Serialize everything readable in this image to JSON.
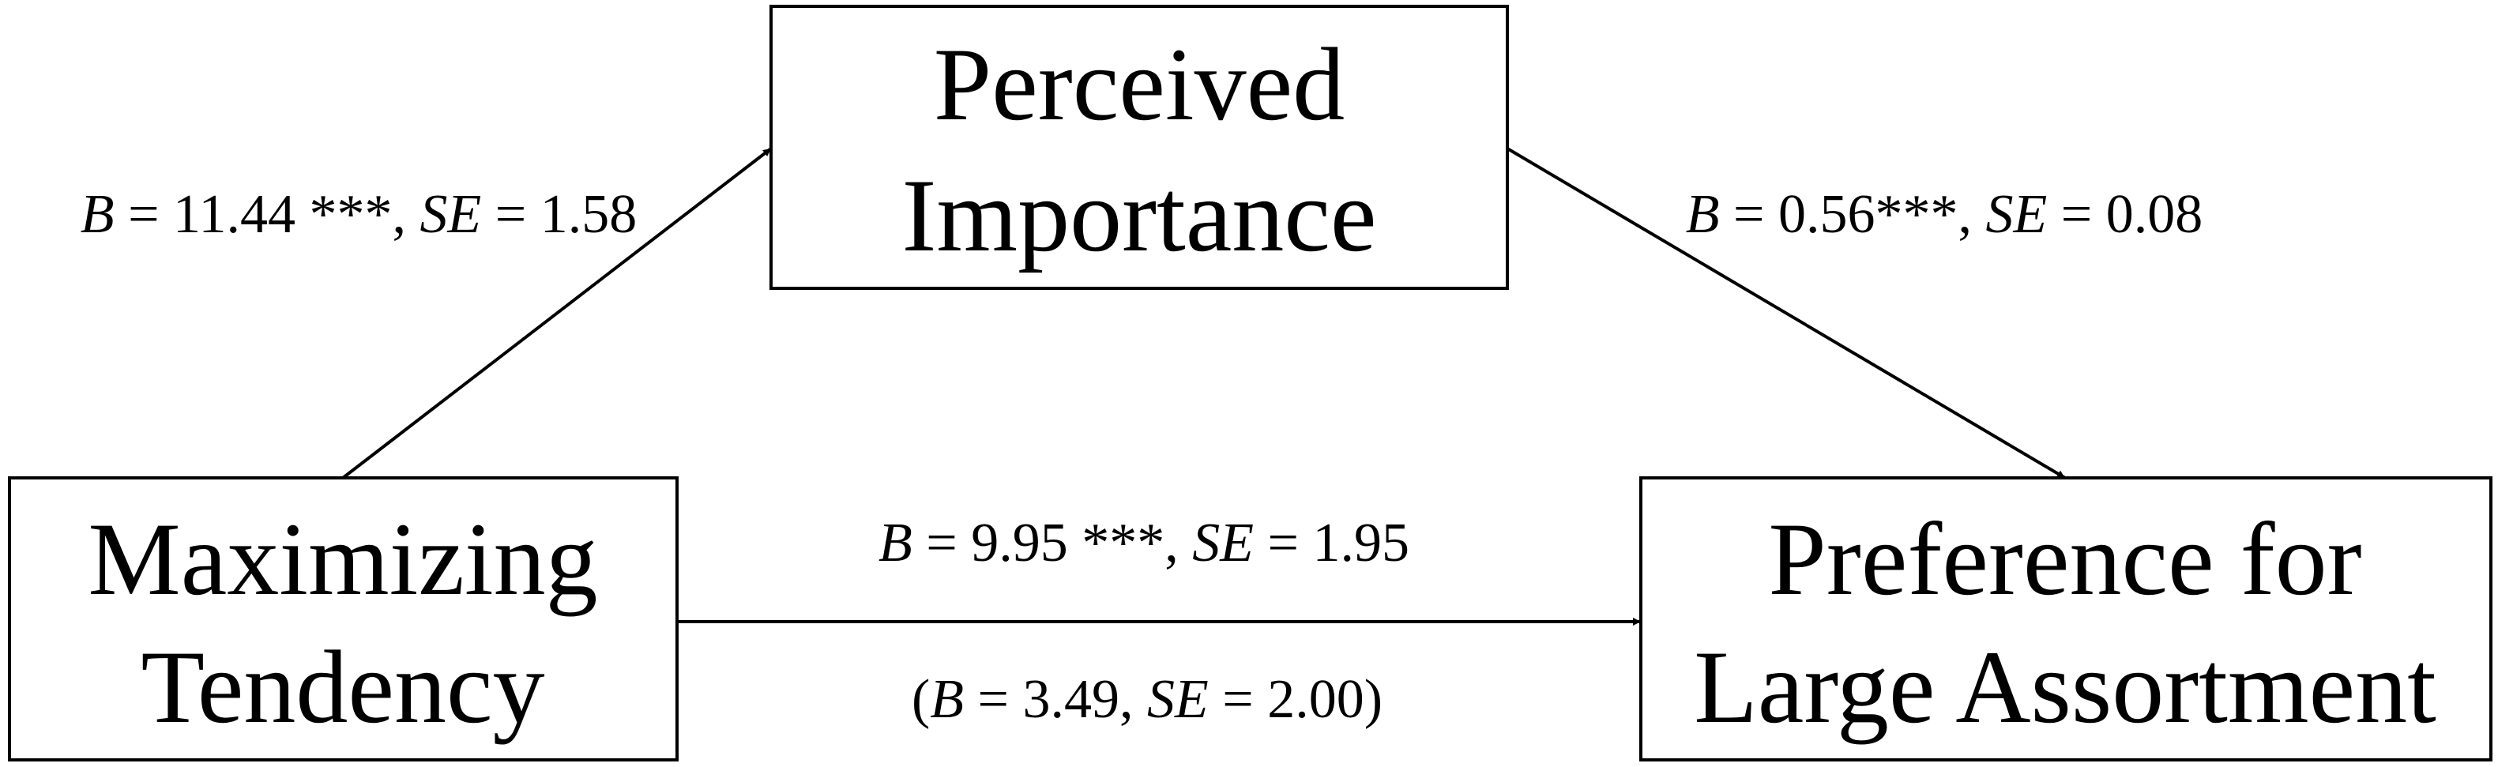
{
  "nodes": [
    {
      "lines": [
        "Perceived",
        "Importance"
      ]
    },
    {
      "lines": [
        "Maximizing",
        "Tendency"
      ]
    },
    {
      "lines": [
        "Preference for",
        "Large Assortment"
      ]
    }
  ],
  "edges": [
    {
      "labels": [
        [
          {
            "text": "B",
            "italic": true
          },
          {
            "text": " = 11.44 ***, ",
            "italic": false
          },
          {
            "text": "SE",
            "italic": true
          },
          {
            "text": " = 1.58",
            "italic": false
          }
        ]
      ]
    },
    {
      "labels": [
        [
          {
            "text": "B",
            "italic": true
          },
          {
            "text": " = 0.56***, ",
            "italic": false
          },
          {
            "text": "SE",
            "italic": true
          },
          {
            "text": " = 0.08",
            "italic": false
          }
        ]
      ]
    },
    {
      "labels": [
        [
          {
            "text": "B",
            "italic": true
          },
          {
            "text": " = 9.95 ***, ",
            "italic": false
          },
          {
            "text": "SE",
            "italic": true
          },
          {
            "text": " = 1.95",
            "italic": false
          }
        ],
        [
          {
            "text": "(",
            "italic": false
          },
          {
            "text": "B",
            "italic": true
          },
          {
            "text": " = 3.49, ",
            "italic": false
          },
          {
            "text": "SE",
            "italic": true
          },
          {
            "text": " = 2.00)",
            "italic": false
          }
        ]
      ]
    }
  ]
}
